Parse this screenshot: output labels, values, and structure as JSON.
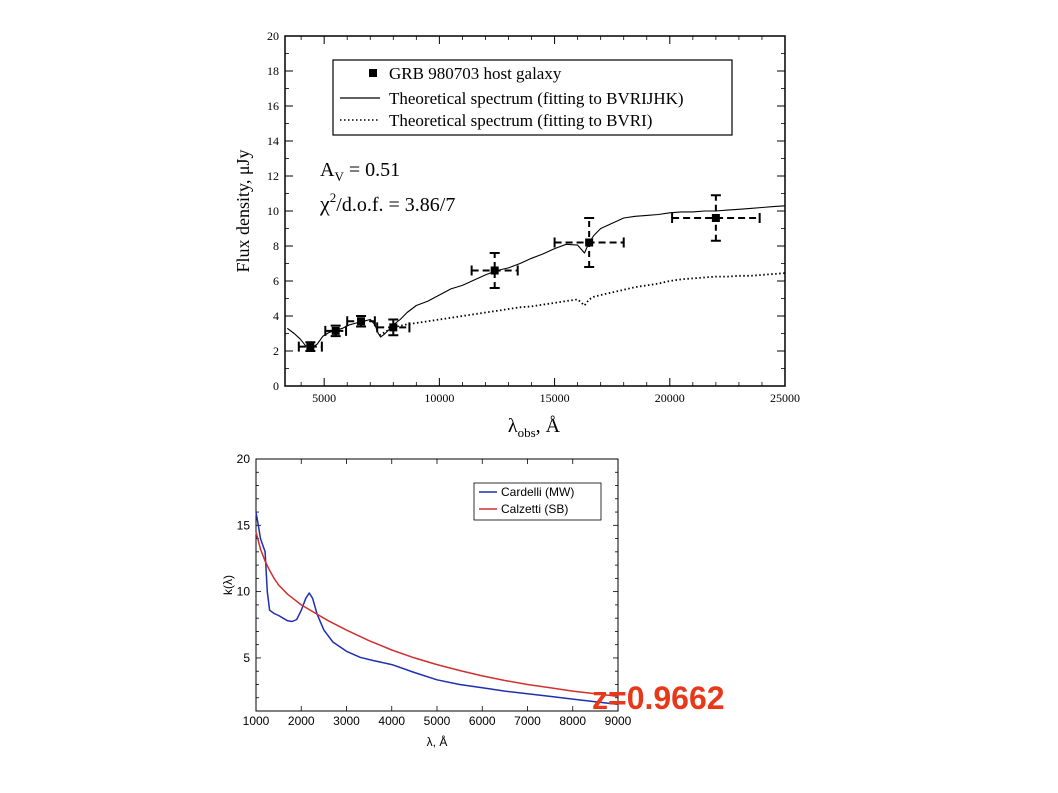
{
  "annotation": "z=0.9662",
  "chart_data": [
    {
      "type": "line",
      "title": "",
      "xlabel_main": "λ",
      "xlabel_sub": "obs",
      "xlabel_tail": ", Å",
      "ylabel": "Flux density, μJy",
      "xlim": [
        3300,
        25000
      ],
      "ylim": [
        0,
        20
      ],
      "xticks": [
        5000,
        10000,
        15000,
        20000,
        25000
      ],
      "yticks": [
        0,
        2,
        4,
        6,
        8,
        10,
        12,
        14,
        16,
        18,
        20
      ],
      "legend": "top",
      "av_main": "A",
      "av_sub": "V",
      "av_value": " = 0.51",
      "chi_main": "χ",
      "chi_sup": "2",
      "chi_value": "/d.o.f. = 3.86/7",
      "points": {
        "name": "GRB 980703 host galaxy",
        "color": "#000000",
        "data": [
          {
            "x": 4400,
            "y": 2.25,
            "xerr": 500,
            "yerr": 0.25
          },
          {
            "x": 5500,
            "y": 3.15,
            "xerr": 450,
            "yerr": 0.3
          },
          {
            "x": 6600,
            "y": 3.7,
            "xerr": 600,
            "yerr": 0.3
          },
          {
            "x": 8000,
            "y": 3.35,
            "xerr": 700,
            "yerr": 0.45
          },
          {
            "x": 12400,
            "y": 6.6,
            "xerr": 1000,
            "yerr": 1.0
          },
          {
            "x": 16500,
            "y": 8.2,
            "xerr": 1500,
            "yerr": 1.4
          },
          {
            "x": 22000,
            "y": 9.6,
            "xerr": 1900,
            "yerr": 1.3
          }
        ]
      },
      "series": [
        {
          "name": "Theoretical spectrum (fitting to BVRIJHK)",
          "style": "solid",
          "x": [
            3400,
            3700,
            3950,
            4200,
            4450,
            4700,
            4950,
            5200,
            5500,
            5800,
            6100,
            6400,
            6700,
            7000,
            7200,
            7350,
            7450,
            7600,
            7800,
            8000,
            8300,
            8600,
            9000,
            9500,
            10000,
            10500,
            11000,
            11500,
            12000,
            12500,
            13000,
            13500,
            14000,
            14500,
            15000,
            15500,
            16000,
            16300,
            16500,
            16700,
            17000,
            17500,
            18000,
            18500,
            19000,
            19500,
            20000,
            20500,
            21000,
            21500,
            22000,
            22500,
            23000,
            23500,
            24000,
            24500,
            25000
          ],
          "y": [
            3.3,
            3.0,
            2.7,
            2.3,
            2.15,
            2.4,
            2.85,
            3.05,
            3.2,
            3.3,
            3.5,
            3.6,
            3.7,
            3.8,
            3.5,
            3.0,
            2.8,
            2.95,
            3.2,
            3.5,
            3.8,
            4.2,
            4.6,
            4.85,
            5.2,
            5.55,
            5.75,
            6.05,
            6.35,
            6.6,
            6.75,
            7.0,
            7.3,
            7.55,
            7.85,
            8.1,
            8.05,
            7.6,
            8.2,
            8.6,
            9.0,
            9.3,
            9.6,
            9.7,
            9.75,
            9.8,
            9.9,
            9.95,
            9.95,
            10.0,
            10.0,
            10.05,
            10.1,
            10.15,
            10.2,
            10.25,
            10.3
          ]
        },
        {
          "name": "Theoretical spectrum (fitting to BVRI)",
          "style": "dotted",
          "x": [
            7400,
            7600,
            7800,
            8000,
            8500,
            9000,
            9500,
            10000,
            10500,
            11000,
            11500,
            12000,
            12500,
            13000,
            13500,
            14000,
            14500,
            15000,
            15500,
            16000,
            16300,
            16500,
            16700,
            17000,
            17500,
            18000,
            18500,
            19000,
            19500,
            20000,
            20500,
            21000,
            21500,
            22000,
            22500,
            23000,
            23500,
            24000,
            24500,
            25000
          ],
          "y": [
            2.9,
            3.05,
            3.2,
            3.35,
            3.5,
            3.6,
            3.7,
            3.8,
            3.9,
            4.0,
            4.1,
            4.2,
            4.3,
            4.4,
            4.5,
            4.55,
            4.65,
            4.75,
            4.85,
            4.95,
            4.6,
            4.95,
            5.1,
            5.2,
            5.35,
            5.5,
            5.65,
            5.75,
            5.85,
            6.0,
            6.1,
            6.15,
            6.2,
            6.25,
            6.25,
            6.3,
            6.3,
            6.35,
            6.4,
            6.45
          ]
        }
      ]
    },
    {
      "type": "line",
      "title": "",
      "xlabel": "λ, Å",
      "ylabel": "k(λ)",
      "xlim": [
        1000,
        9000
      ],
      "ylim": [
        1,
        20
      ],
      "xticks": [
        1000,
        2000,
        3000,
        4000,
        5000,
        6000,
        7000,
        8000,
        9000
      ],
      "yticks": [
        5,
        10,
        15,
        20
      ],
      "legend": "top-right",
      "series": [
        {
          "name": "Cardelli (MW)",
          "color": "#1f2fb0",
          "x": [
            1000,
            1050,
            1100,
            1150,
            1200,
            1250,
            1300,
            1400,
            1500,
            1600,
            1700,
            1800,
            1900,
            2000,
            2100,
            2175,
            2250,
            2350,
            2500,
            2700,
            3000,
            3300,
            3600,
            4000,
            4500,
            5000,
            5500,
            6000,
            6500,
            7000,
            7500,
            8000,
            8500,
            9000
          ],
          "y": [
            16.0,
            15.0,
            14.0,
            13.5,
            13.0,
            10.0,
            8.6,
            8.35,
            8.2,
            8.0,
            7.8,
            7.75,
            7.9,
            8.6,
            9.5,
            9.9,
            9.5,
            8.3,
            7.1,
            6.2,
            5.5,
            5.05,
            4.8,
            4.5,
            3.9,
            3.35,
            3.0,
            2.75,
            2.5,
            2.3,
            2.1,
            1.9,
            1.7,
            1.5
          ]
        },
        {
          "name": "Calzetti (SB)",
          "color": "#d03030",
          "x": [
            1000,
            1100,
            1200,
            1300,
            1400,
            1500,
            1700,
            2000,
            2300,
            2600,
            3000,
            3500,
            4000,
            4500,
            5000,
            5500,
            6000,
            6500,
            7000,
            7500,
            8000,
            8500,
            9000
          ],
          "y": [
            14.5,
            13.2,
            12.3,
            11.6,
            11.0,
            10.5,
            9.8,
            9.0,
            8.4,
            7.8,
            7.1,
            6.3,
            5.6,
            5.0,
            4.5,
            4.05,
            3.65,
            3.3,
            3.0,
            2.75,
            2.5,
            2.3,
            2.1
          ]
        }
      ]
    }
  ]
}
